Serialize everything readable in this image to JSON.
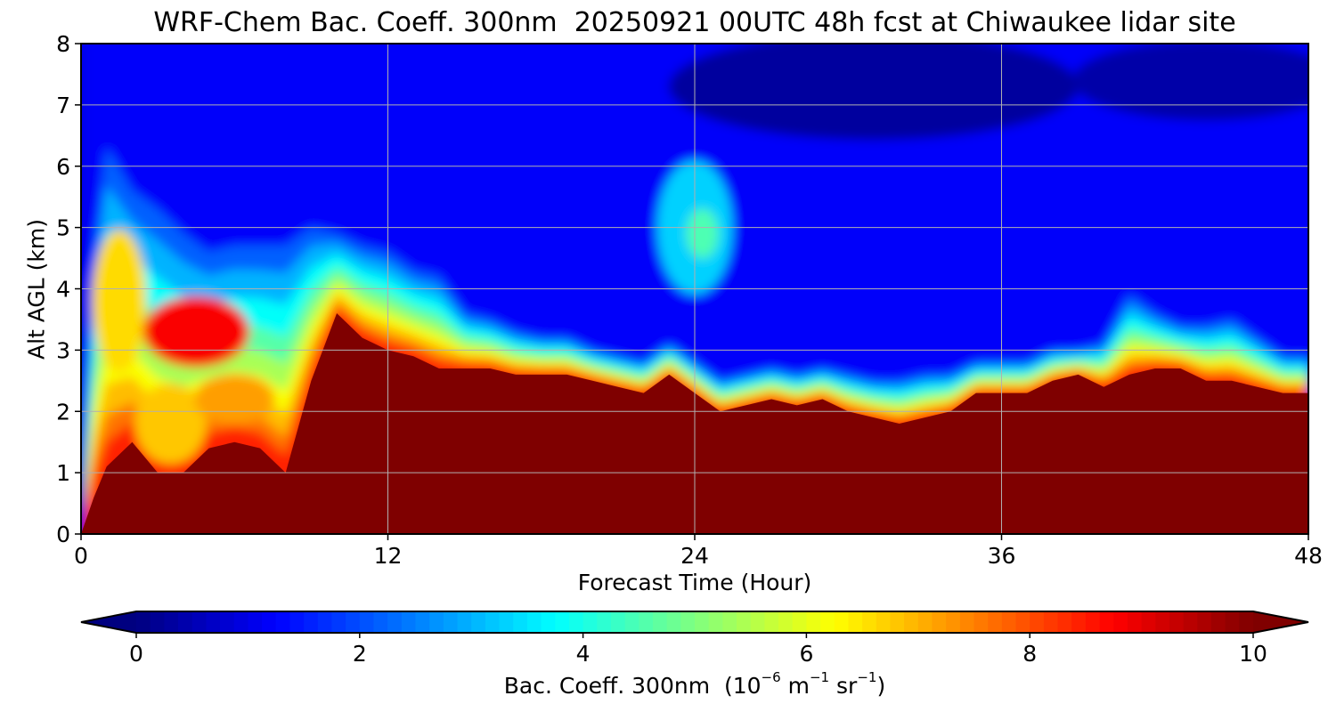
{
  "chart_data": {
    "type": "heatmap",
    "title": "WRF-Chem Bac. Coeff. 300nm  20250921 00UTC 48h fcst at Chiwaukee lidar site",
    "xlabel": "Forecast Time (Hour)",
    "ylabel": "Alt AGL (km)",
    "xlim": [
      0,
      48
    ],
    "ylim": [
      0,
      8
    ],
    "xticks": [
      "0",
      "12",
      "24",
      "36",
      "48"
    ],
    "yticks": [
      "0",
      "1",
      "2",
      "3",
      "4",
      "5",
      "6",
      "7",
      "8"
    ],
    "grid": true,
    "colormap": "jet",
    "colorbar": {
      "label_main": "Bac. Coeff. 300nm  (10",
      "exp1": "−6",
      "mid": " m",
      "exp2": "−1",
      "mid2": " sr",
      "exp3": "−1",
      "end": ")",
      "range": [
        0,
        10
      ],
      "ticks": [
        "0",
        "2",
        "4",
        "6",
        "8",
        "10"
      ],
      "extend": "both"
    },
    "profile": {
      "description_fields": [
        "hour",
        "top_of_saturated_layer_km",
        "top_of_aerosol_plume_km"
      ],
      "hours": [
        0,
        0.5,
        1,
        2,
        3,
        4,
        5,
        6,
        7,
        8,
        9,
        10,
        11,
        12,
        13,
        14,
        15,
        16,
        17,
        18,
        19,
        20,
        21,
        22,
        23,
        24,
        25,
        26,
        27,
        28,
        29,
        30,
        31,
        32,
        33,
        34,
        35,
        36,
        37,
        38,
        39,
        40,
        41,
        42,
        43,
        44,
        45,
        46,
        47,
        48
      ],
      "base_top_km": [
        0,
        0.6,
        1.1,
        1.5,
        1.0,
        1.0,
        1.4,
        1.5,
        1.4,
        1.0,
        2.5,
        3.6,
        3.2,
        3.0,
        2.9,
        2.7,
        2.7,
        2.7,
        2.6,
        2.6,
        2.6,
        2.5,
        2.4,
        2.3,
        2.6,
        2.3,
        2.0,
        2.1,
        2.2,
        2.1,
        2.2,
        2.0,
        1.9,
        1.8,
        1.9,
        2.0,
        2.3,
        2.3,
        2.3,
        2.5,
        2.6,
        2.4,
        2.6,
        2.7,
        2.7,
        2.5,
        2.5,
        2.4,
        2.3,
        2.3
      ],
      "plume_top_km": [
        0,
        4.5,
        6.3,
        5.6,
        5.3,
        4.9,
        4.6,
        4.7,
        4.7,
        4.7,
        5.0,
        4.9,
        4.7,
        4.6,
        4.3,
        4.2,
        3.6,
        3.5,
        3.3,
        3.2,
        3.2,
        3.0,
        2.9,
        2.8,
        3.1,
        2.8,
        2.5,
        2.6,
        2.7,
        2.6,
        2.7,
        2.6,
        2.5,
        2.5,
        2.6,
        2.6,
        2.8,
        2.8,
        2.8,
        3.0,
        3.0,
        3.1,
        3.9,
        3.6,
        3.4,
        3.4,
        3.5,
        3.2,
        2.9,
        2.9
      ],
      "secondary_plume": {
        "hour": 24,
        "alt_km": 5.0,
        "value": 4.5
      }
    }
  }
}
